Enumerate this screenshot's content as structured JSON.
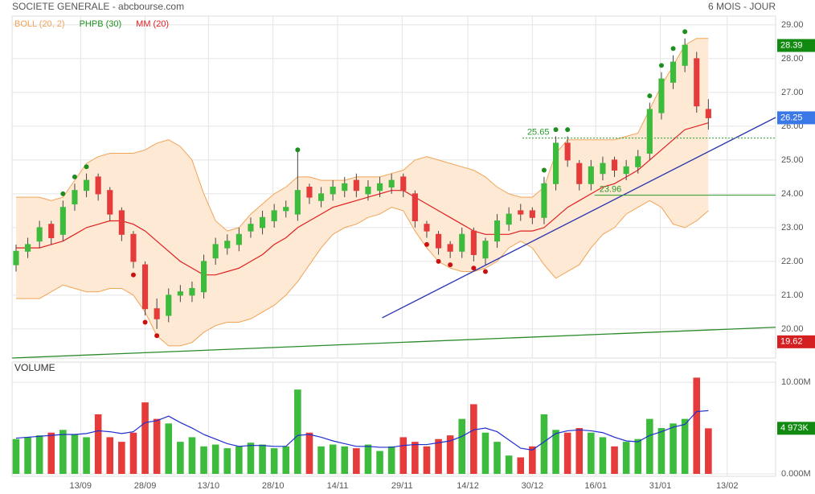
{
  "header": {
    "title": "SOCIETE GENERALE - abcbourse.com",
    "period": "6 MOIS - JOUR"
  },
  "chart_data": [
    {
      "type": "candlestick",
      "xlim": [
        -0.34,
        64.73
      ],
      "xticks": [
        {
          "value": 5.5,
          "label": "13/09"
        },
        {
          "value": 11,
          "label": "28/09"
        },
        {
          "value": 16.4,
          "label": "13/10"
        },
        {
          "value": 21.9,
          "label": "28/10"
        },
        {
          "value": 27.4,
          "label": "14/11"
        },
        {
          "value": 32.9,
          "label": "29/11"
        },
        {
          "value": 38.5,
          "label": "14/12"
        },
        {
          "value": 44,
          "label": "30/12"
        },
        {
          "value": 49.4,
          "label": "16/01"
        },
        {
          "value": 54.9,
          "label": "31/01"
        },
        {
          "value": 60.6,
          "label": "13/02"
        }
      ],
      "ylim": [
        19.14,
        29.26
      ],
      "yticks": [
        {
          "value": 20,
          "label": "20.00"
        },
        {
          "value": 21,
          "label": "21.00"
        },
        {
          "value": 22,
          "label": "22.00"
        },
        {
          "value": 23,
          "label": "23.00"
        },
        {
          "value": 24,
          "label": "24.00"
        },
        {
          "value": 25,
          "label": "25.00"
        },
        {
          "value": 26,
          "label": "26.00"
        },
        {
          "value": 27,
          "label": "27.00"
        },
        {
          "value": 28,
          "label": "28.00"
        },
        {
          "value": 29,
          "label": "29.00"
        }
      ],
      "up_color": "#3dbb3d",
      "down_color": "#e53b3b",
      "open": [
        21.9,
        22.3,
        22.6,
        23.1,
        22.8,
        23.7,
        24.1,
        24.5,
        24.1,
        23.5,
        22.8,
        21.9,
        20.6,
        20.4,
        21.0,
        21.0,
        21.1,
        22.1,
        22.4,
        22.5,
        22.9,
        23.0,
        23.2,
        23.5,
        23.4,
        24.2,
        23.8,
        24.0,
        24.1,
        24.4,
        24.0,
        24.1,
        24.2,
        24.5,
        24.0,
        23.1,
        22.8,
        22.5,
        22.3,
        22.9,
        22.1,
        22.6,
        23.1,
        23.5,
        23.5,
        23.3,
        24.3,
        25.5,
        24.9,
        24.3,
        24.6,
        25.0,
        24.6,
        24.8,
        25.2,
        26.4,
        27.3,
        27.8,
        28.0,
        26.5
      ],
      "high": [
        22.5,
        22.7,
        23.2,
        23.2,
        23.8,
        24.3,
        24.6,
        24.6,
        24.2,
        23.6,
        22.9,
        22.0,
        20.9,
        21.2,
        21.3,
        21.4,
        22.2,
        22.7,
        22.8,
        23.0,
        23.3,
        23.5,
        23.7,
        23.8,
        25.3,
        24.3,
        24.2,
        24.4,
        24.5,
        24.6,
        24.4,
        24.5,
        24.6,
        24.6,
        24.1,
        23.2,
        22.9,
        22.6,
        23.0,
        23.0,
        22.7,
        23.4,
        23.6,
        23.7,
        23.6,
        24.5,
        25.7,
        25.7,
        25.0,
        25.0,
        25.1,
        25.1,
        25.0,
        25.3,
        26.7,
        27.6,
        28.1,
        28.6,
        28.2,
        26.8
      ],
      "low": [
        21.7,
        22.1,
        22.4,
        22.5,
        22.6,
        23.5,
        23.9,
        23.8,
        23.2,
        22.6,
        21.8,
        20.4,
        20.0,
        20.2,
        20.8,
        20.8,
        20.9,
        21.9,
        22.2,
        22.3,
        22.7,
        22.8,
        23.0,
        23.3,
        23.2,
        23.7,
        23.6,
        23.8,
        23.9,
        23.9,
        23.8,
        23.9,
        24.0,
        23.9,
        23.0,
        22.7,
        22.2,
        22.1,
        22.1,
        22.0,
        21.9,
        22.4,
        22.9,
        23.2,
        23.1,
        23.1,
        24.1,
        24.8,
        24.1,
        24.1,
        24.4,
        24.5,
        24.4,
        24.6,
        25.0,
        26.2,
        27.1,
        27.6,
        26.4,
        25.9
      ],
      "close": [
        22.3,
        22.5,
        23.0,
        22.7,
        23.6,
        24.1,
        24.4,
        24.0,
        23.4,
        22.8,
        22.0,
        20.6,
        20.3,
        21.0,
        21.1,
        21.2,
        22.0,
        22.5,
        22.6,
        22.8,
        23.1,
        23.3,
        23.5,
        23.6,
        24.1,
        23.9,
        24.0,
        24.2,
        24.3,
        24.1,
        24.2,
        24.3,
        24.4,
        24.1,
        23.2,
        22.9,
        22.4,
        22.3,
        22.8,
        22.2,
        22.6,
        23.2,
        23.4,
        23.4,
        23.3,
        24.3,
        25.5,
        25.0,
        24.3,
        24.8,
        24.9,
        24.7,
        24.8,
        25.1,
        26.5,
        27.4,
        27.9,
        28.4,
        26.6,
        26.25
      ],
      "series": [
        {
          "name": "BOLL (20, 2)",
          "color": "#f2a356",
          "fill": "#fde9d4",
          "upper": [
            23.9,
            23.9,
            23.9,
            23.8,
            23.9,
            24.4,
            24.9,
            25.1,
            25.2,
            25.2,
            25.2,
            25.3,
            25.5,
            25.6,
            25.4,
            25.0,
            24.0,
            23.2,
            22.9,
            23.0,
            23.4,
            23.7,
            24.0,
            24.2,
            24.5,
            24.5,
            24.4,
            24.4,
            24.4,
            24.5,
            24.5,
            24.5,
            24.6,
            24.7,
            25.0,
            25.1,
            25.0,
            24.9,
            24.8,
            24.7,
            24.5,
            24.2,
            24.0,
            23.9,
            23.9,
            24.2,
            25.2,
            25.6,
            25.6,
            25.6,
            25.6,
            25.6,
            25.7,
            25.8,
            26.5,
            27.2,
            27.8,
            28.4,
            28.6,
            28.6
          ],
          "lower": [
            20.9,
            20.9,
            20.9,
            21.1,
            21.3,
            21.2,
            21.1,
            21.1,
            21.2,
            21.2,
            21.0,
            20.5,
            19.8,
            19.5,
            19.5,
            19.6,
            19.9,
            20.1,
            20.2,
            20.2,
            20.3,
            20.5,
            20.7,
            21.0,
            21.4,
            21.9,
            22.4,
            22.8,
            23.0,
            23.1,
            23.3,
            23.4,
            23.6,
            23.5,
            22.9,
            22.4,
            22.0,
            21.8,
            21.7,
            21.7,
            21.8,
            22.0,
            22.4,
            22.6,
            22.4,
            21.9,
            21.5,
            21.7,
            21.9,
            22.4,
            22.8,
            23.0,
            23.4,
            23.6,
            23.8,
            23.6,
            23.1,
            23.0,
            23.2,
            23.5
          ]
        },
        {
          "name": "PHPB (30)",
          "color": "#1e8f1e",
          "down_color": "#cc1111",
          "points_up": [
            [
              4,
              24.0
            ],
            [
              5,
              24.5
            ],
            [
              6,
              24.8
            ],
            [
              24,
              25.3
            ],
            [
              45,
              24.7
            ],
            [
              46,
              25.9
            ],
            [
              47,
              25.9
            ],
            [
              54,
              26.9
            ],
            [
              55,
              27.8
            ],
            [
              56,
              28.3
            ],
            [
              57,
              28.8
            ]
          ],
          "points_down": [
            [
              10,
              21.6
            ],
            [
              11,
              20.2
            ],
            [
              12,
              19.8
            ],
            [
              35,
              22.5
            ],
            [
              36,
              22.0
            ],
            [
              37,
              21.9
            ],
            [
              39,
              21.8
            ],
            [
              40,
              21.7
            ]
          ]
        },
        {
          "name": "MM (20)",
          "color": "#e02020",
          "values": [
            22.4,
            22.4,
            22.4,
            22.5,
            22.6,
            22.8,
            23.0,
            23.1,
            23.2,
            23.2,
            23.1,
            22.9,
            22.6,
            22.3,
            22.0,
            21.8,
            21.6,
            21.6,
            21.7,
            21.8,
            22.0,
            22.2,
            22.5,
            22.7,
            23.0,
            23.2,
            23.4,
            23.6,
            23.7,
            23.8,
            23.9,
            24.0,
            24.1,
            24.1,
            23.9,
            23.7,
            23.5,
            23.3,
            23.1,
            22.9,
            22.8,
            22.8,
            22.8,
            22.9,
            22.9,
            23.0,
            23.3,
            23.6,
            23.8,
            24.0,
            24.2,
            24.3,
            24.5,
            24.7,
            25.0,
            25.3,
            25.6,
            25.9,
            26.0,
            26.1
          ]
        }
      ],
      "trendlines": [
        {
          "color": "#2a8a2a",
          "points": [
            [
              -0.34,
              19.14
            ],
            [
              64.73,
              20.05
            ]
          ]
        },
        {
          "color": "#2a34b0",
          "points": [
            [
              31.2,
              20.33
            ],
            [
              64.73,
              26.26
            ]
          ]
        }
      ],
      "levels": [
        {
          "value": 25.65,
          "start": 43.15,
          "dashed": true,
          "color": "#2a9a2a"
        },
        {
          "value": 23.96,
          "start": 49.3,
          "dashed": false,
          "color": "#2a9a2a"
        }
      ],
      "last_values": [
        {
          "value": 28.39,
          "color": "#128a12"
        },
        {
          "value": 26.25,
          "color": "#3b78e7"
        },
        {
          "value": 19.62,
          "color": "#d42020"
        }
      ]
    },
    {
      "type": "bar",
      "title": "VOLUME",
      "values": [
        3.8,
        4.0,
        4.2,
        4.5,
        4.8,
        4.3,
        4.0,
        6.5,
        4.0,
        3.5,
        4.5,
        7.8,
        6.0,
        5.5,
        3.5,
        4.0,
        3.0,
        3.2,
        2.8,
        3.0,
        3.4,
        3.2,
        2.8,
        3.0,
        9.2,
        4.5,
        3.0,
        3.2,
        3.0,
        2.8,
        3.2,
        2.5,
        3.0,
        4.0,
        3.5,
        3.0,
        3.8,
        4.2,
        6.0,
        7.6,
        4.5,
        3.5,
        2.0,
        1.8,
        3.0,
        6.5,
        4.8,
        4.5,
        5.0,
        4.5,
        4.0,
        3.0,
        3.5,
        3.8,
        6.0,
        5.0,
        5.5,
        6.0,
        10.5,
        4.97
      ],
      "ylim": [
        0,
        12.2
      ],
      "yticks": [
        {
          "value": 0,
          "label": "0.000M"
        },
        {
          "value": 10,
          "label": "10.00M"
        }
      ],
      "ma": {
        "color": "#1f2fcf",
        "values": [
          3.9,
          4.0,
          4.1,
          4.2,
          4.3,
          4.3,
          4.4,
          4.7,
          4.6,
          4.4,
          4.6,
          5.6,
          5.8,
          6.3,
          5.6,
          5.0,
          4.3,
          3.8,
          3.3,
          3.0,
          3.1,
          3.1,
          3.0,
          3.0,
          4.2,
          4.3,
          4.0,
          3.6,
          3.3,
          3.0,
          3.0,
          2.9,
          2.9,
          3.1,
          3.2,
          3.2,
          3.4,
          3.6,
          4.1,
          4.8,
          5.0,
          4.6,
          3.7,
          2.8,
          2.6,
          3.5,
          4.4,
          4.7,
          4.8,
          4.7,
          4.5,
          4.0,
          3.6,
          3.5,
          4.2,
          4.6,
          5.1,
          5.4,
          6.8,
          6.9
        ]
      },
      "last": {
        "value": 4.973,
        "label": "4 973K",
        "color": "#128a12"
      }
    }
  ]
}
